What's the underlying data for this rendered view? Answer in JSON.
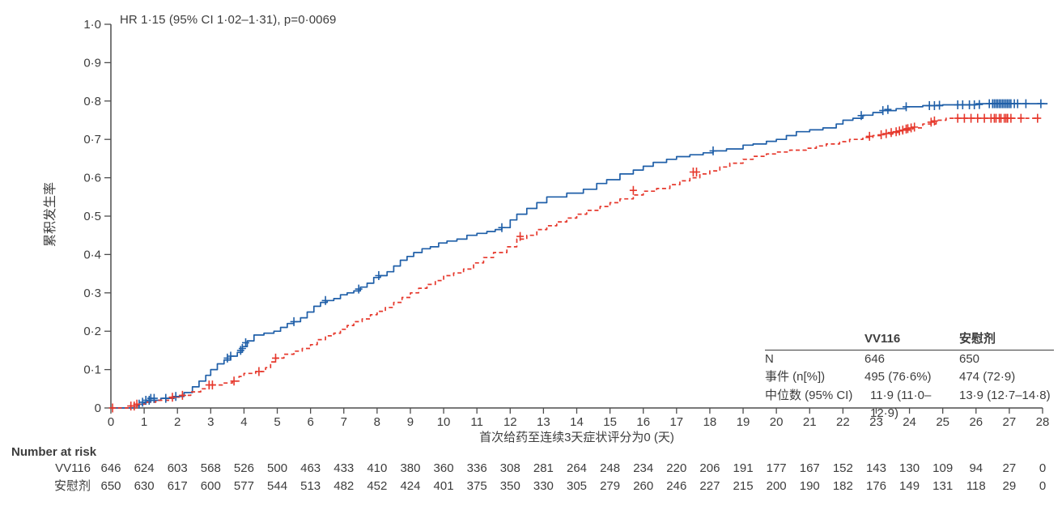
{
  "figure": {
    "annotation": "HR 1·15 (95% CI 1·02–1·31), p=0·0069"
  },
  "colors": {
    "vv116": "#1f5fa8",
    "placebo": "#e6382c",
    "axis": "#4d4d4d",
    "text": "#3d3d3d"
  },
  "axes": {
    "y": {
      "title": "累积发生率",
      "range": [
        0,
        1
      ],
      "tick_labels": [
        "0",
        "0·1",
        "0·2",
        "0·3",
        "0·4",
        "0·5",
        "0·6",
        "0·7",
        "0·8",
        "0·9",
        "1·0"
      ]
    },
    "x": {
      "title": "首次给药至连续3天症状评分为0 (天)",
      "range": [
        0,
        28
      ],
      "tick_labels": [
        "0",
        "1",
        "2",
        "3",
        "4",
        "5",
        "6",
        "7",
        "8",
        "9",
        "10",
        "11",
        "12",
        "13",
        "14",
        "15",
        "16",
        "17",
        "18",
        "19",
        "20",
        "21",
        "22",
        "23",
        "24",
        "25",
        "26",
        "27",
        "28"
      ]
    }
  },
  "stats_table": {
    "columns": [
      "VV116",
      "安慰剂"
    ],
    "rows": [
      {
        "label": "N",
        "vv116": "646",
        "placebo": "650"
      },
      {
        "label": "事件 (n[%])",
        "vv116": "495 (76·6%)",
        "placebo": "474 (72·9)"
      },
      {
        "label": "中位数 (95% CI)",
        "vv116": "11·9 (11·0–12·9)",
        "placebo": "13·9 (12·7–14·8)"
      }
    ]
  },
  "risk_table": {
    "title": "Number at risk",
    "rows": [
      {
        "label": "VV116",
        "counts": [
          646,
          624,
          603,
          568,
          526,
          500,
          463,
          433,
          410,
          380,
          360,
          336,
          308,
          281,
          264,
          248,
          234,
          220,
          206,
          191,
          177,
          167,
          152,
          143,
          130,
          109,
          94,
          27,
          0
        ]
      },
      {
        "label": "安慰剂",
        "counts": [
          650,
          630,
          617,
          600,
          577,
          544,
          513,
          482,
          452,
          424,
          401,
          375,
          350,
          330,
          305,
          279,
          260,
          246,
          227,
          215,
          200,
          190,
          182,
          176,
          149,
          131,
          118,
          29,
          0
        ]
      }
    ]
  },
  "chart_data": {
    "type": "line",
    "subtype": "kaplan-meier-step",
    "title": "",
    "xlabel": "首次给药至连续3天症状评分为0 (天)",
    "ylabel": "累积发生率",
    "xlim": [
      0,
      28
    ],
    "ylim": [
      0,
      1
    ],
    "grid": false,
    "series": [
      {
        "name": "VV116",
        "style": "solid",
        "color": "#1f5fa8",
        "points": [
          [
            0,
            0
          ],
          [
            0.7,
            0.005
          ],
          [
            0.85,
            0.01
          ],
          [
            1.0,
            0.015
          ],
          [
            1.1,
            0.02
          ],
          [
            1.5,
            0.025
          ],
          [
            1.9,
            0.03
          ],
          [
            2.2,
            0.04
          ],
          [
            2.45,
            0.055
          ],
          [
            2.65,
            0.07
          ],
          [
            2.85,
            0.085
          ],
          [
            3.0,
            0.1
          ],
          [
            3.2,
            0.115
          ],
          [
            3.4,
            0.125
          ],
          [
            3.6,
            0.135
          ],
          [
            3.8,
            0.145
          ],
          [
            3.95,
            0.16
          ],
          [
            4.1,
            0.175
          ],
          [
            4.3,
            0.19
          ],
          [
            4.6,
            0.195
          ],
          [
            4.9,
            0.2
          ],
          [
            5.1,
            0.21
          ],
          [
            5.3,
            0.22
          ],
          [
            5.5,
            0.225
          ],
          [
            5.7,
            0.235
          ],
          [
            5.9,
            0.25
          ],
          [
            6.1,
            0.265
          ],
          [
            6.3,
            0.275
          ],
          [
            6.5,
            0.28
          ],
          [
            6.7,
            0.285
          ],
          [
            6.9,
            0.295
          ],
          [
            7.1,
            0.3
          ],
          [
            7.3,
            0.305
          ],
          [
            7.5,
            0.315
          ],
          [
            7.7,
            0.325
          ],
          [
            7.9,
            0.34
          ],
          [
            8.1,
            0.345
          ],
          [
            8.3,
            0.355
          ],
          [
            8.5,
            0.37
          ],
          [
            8.7,
            0.385
          ],
          [
            8.9,
            0.395
          ],
          [
            9.1,
            0.405
          ],
          [
            9.35,
            0.415
          ],
          [
            9.6,
            0.42
          ],
          [
            9.85,
            0.43
          ],
          [
            10.1,
            0.435
          ],
          [
            10.4,
            0.44
          ],
          [
            10.7,
            0.45
          ],
          [
            11.0,
            0.455
          ],
          [
            11.3,
            0.46
          ],
          [
            11.55,
            0.465
          ],
          [
            11.75,
            0.47
          ],
          [
            12.0,
            0.49
          ],
          [
            12.2,
            0.505
          ],
          [
            12.5,
            0.52
          ],
          [
            12.8,
            0.535
          ],
          [
            13.1,
            0.55
          ],
          [
            13.7,
            0.56
          ],
          [
            14.2,
            0.57
          ],
          [
            14.6,
            0.585
          ],
          [
            14.9,
            0.595
          ],
          [
            15.3,
            0.61
          ],
          [
            15.7,
            0.62
          ],
          [
            16.0,
            0.63
          ],
          [
            16.3,
            0.64
          ],
          [
            16.7,
            0.648
          ],
          [
            17.0,
            0.655
          ],
          [
            17.4,
            0.66
          ],
          [
            17.8,
            0.665
          ],
          [
            18.1,
            0.67
          ],
          [
            18.5,
            0.675
          ],
          [
            19.0,
            0.685
          ],
          [
            19.3,
            0.688
          ],
          [
            19.7,
            0.695
          ],
          [
            20.0,
            0.7
          ],
          [
            20.3,
            0.71
          ],
          [
            20.6,
            0.72
          ],
          [
            21.0,
            0.725
          ],
          [
            21.4,
            0.73
          ],
          [
            21.8,
            0.74
          ],
          [
            22.0,
            0.75
          ],
          [
            22.3,
            0.755
          ],
          [
            22.6,
            0.763
          ],
          [
            22.9,
            0.77
          ],
          [
            23.2,
            0.775
          ],
          [
            23.6,
            0.78
          ],
          [
            23.9,
            0.785
          ],
          [
            24.4,
            0.788
          ],
          [
            25.0,
            0.79
          ],
          [
            26.0,
            0.793
          ],
          [
            28.15,
            0.793
          ]
        ],
        "censor_marks": [
          [
            0.85,
            0.01
          ],
          [
            0.95,
            0.015
          ],
          [
            1.05,
            0.02
          ],
          [
            1.15,
            0.02
          ],
          [
            1.2,
            0.025
          ],
          [
            1.3,
            0.025
          ],
          [
            1.65,
            0.025
          ],
          [
            1.95,
            0.03
          ],
          [
            3.5,
            0.13
          ],
          [
            3.6,
            0.135
          ],
          [
            3.9,
            0.15
          ],
          [
            3.95,
            0.155
          ],
          [
            4.05,
            0.17
          ],
          [
            5.5,
            0.225
          ],
          [
            6.45,
            0.28
          ],
          [
            7.45,
            0.31
          ],
          [
            8.05,
            0.345
          ],
          [
            11.75,
            0.47
          ],
          [
            18.1,
            0.67
          ],
          [
            22.55,
            0.762
          ],
          [
            23.2,
            0.775
          ],
          [
            23.35,
            0.778
          ],
          [
            23.9,
            0.785
          ],
          [
            24.6,
            0.788
          ],
          [
            24.75,
            0.788
          ],
          [
            24.9,
            0.789
          ],
          [
            25.45,
            0.79
          ],
          [
            25.6,
            0.79
          ],
          [
            25.8,
            0.79
          ],
          [
            25.95,
            0.79
          ],
          [
            26.1,
            0.791
          ],
          [
            26.4,
            0.793
          ],
          [
            26.5,
            0.793
          ],
          [
            26.55,
            0.793
          ],
          [
            26.6,
            0.793
          ],
          [
            26.65,
            0.793
          ],
          [
            26.7,
            0.793
          ],
          [
            26.75,
            0.793
          ],
          [
            26.8,
            0.793
          ],
          [
            26.85,
            0.793
          ],
          [
            26.9,
            0.793
          ],
          [
            26.95,
            0.793
          ],
          [
            27.0,
            0.793
          ],
          [
            27.05,
            0.793
          ],
          [
            27.15,
            0.793
          ],
          [
            27.25,
            0.793
          ],
          [
            27.5,
            0.793
          ],
          [
            27.95,
            0.793
          ]
        ]
      },
      {
        "name": "安慰剂",
        "style": "dashed",
        "color": "#e6382c",
        "points": [
          [
            0,
            0
          ],
          [
            0.55,
            0.005
          ],
          [
            0.8,
            0.01
          ],
          [
            1.05,
            0.015
          ],
          [
            1.35,
            0.02
          ],
          [
            1.8,
            0.028
          ],
          [
            2.1,
            0.033
          ],
          [
            2.4,
            0.042
          ],
          [
            2.7,
            0.05
          ],
          [
            2.95,
            0.06
          ],
          [
            3.35,
            0.065
          ],
          [
            3.65,
            0.07
          ],
          [
            3.85,
            0.082
          ],
          [
            4.0,
            0.09
          ],
          [
            4.35,
            0.095
          ],
          [
            4.65,
            0.105
          ],
          [
            4.8,
            0.12
          ],
          [
            4.95,
            0.13
          ],
          [
            5.2,
            0.14
          ],
          [
            5.5,
            0.148
          ],
          [
            5.75,
            0.155
          ],
          [
            6.0,
            0.165
          ],
          [
            6.2,
            0.178
          ],
          [
            6.45,
            0.188
          ],
          [
            6.7,
            0.195
          ],
          [
            6.9,
            0.205
          ],
          [
            7.1,
            0.215
          ],
          [
            7.3,
            0.225
          ],
          [
            7.55,
            0.232
          ],
          [
            7.8,
            0.243
          ],
          [
            8.0,
            0.252
          ],
          [
            8.25,
            0.262
          ],
          [
            8.5,
            0.275
          ],
          [
            8.75,
            0.288
          ],
          [
            9.0,
            0.3
          ],
          [
            9.25,
            0.312
          ],
          [
            9.5,
            0.322
          ],
          [
            9.75,
            0.332
          ],
          [
            10.0,
            0.345
          ],
          [
            10.3,
            0.352
          ],
          [
            10.6,
            0.362
          ],
          [
            10.9,
            0.378
          ],
          [
            11.2,
            0.392
          ],
          [
            11.5,
            0.405
          ],
          [
            11.9,
            0.42
          ],
          [
            12.2,
            0.44
          ],
          [
            12.5,
            0.45
          ],
          [
            12.8,
            0.465
          ],
          [
            13.1,
            0.475
          ],
          [
            13.4,
            0.485
          ],
          [
            13.7,
            0.495
          ],
          [
            14.0,
            0.505
          ],
          [
            14.3,
            0.515
          ],
          [
            14.7,
            0.525
          ],
          [
            15.0,
            0.535
          ],
          [
            15.3,
            0.545
          ],
          [
            15.7,
            0.555
          ],
          [
            16.0,
            0.565
          ],
          [
            16.4,
            0.572
          ],
          [
            16.8,
            0.582
          ],
          [
            17.1,
            0.592
          ],
          [
            17.4,
            0.6
          ],
          [
            17.7,
            0.61
          ],
          [
            18.0,
            0.618
          ],
          [
            18.3,
            0.628
          ],
          [
            18.6,
            0.638
          ],
          [
            19.0,
            0.648
          ],
          [
            19.3,
            0.656
          ],
          [
            19.7,
            0.662
          ],
          [
            20.0,
            0.667
          ],
          [
            20.4,
            0.672
          ],
          [
            20.9,
            0.677
          ],
          [
            21.2,
            0.683
          ],
          [
            21.5,
            0.688
          ],
          [
            21.9,
            0.694
          ],
          [
            22.2,
            0.7
          ],
          [
            22.6,
            0.705
          ],
          [
            22.9,
            0.71
          ],
          [
            23.2,
            0.714
          ],
          [
            23.5,
            0.718
          ],
          [
            23.8,
            0.724
          ],
          [
            24.1,
            0.73
          ],
          [
            24.4,
            0.74
          ],
          [
            24.8,
            0.75
          ],
          [
            25.1,
            0.755
          ],
          [
            27.9,
            0.755
          ]
        ],
        "censor_marks": [
          [
            0.05,
            0
          ],
          [
            0.6,
            0.005
          ],
          [
            0.7,
            0.005
          ],
          [
            0.78,
            0.01
          ],
          [
            1.85,
            0.028
          ],
          [
            2.15,
            0.033
          ],
          [
            2.95,
            0.06
          ],
          [
            3.05,
            0.06
          ],
          [
            3.7,
            0.07
          ],
          [
            4.45,
            0.095
          ],
          [
            4.95,
            0.13
          ],
          [
            12.3,
            0.447
          ],
          [
            15.7,
            0.567
          ],
          [
            17.5,
            0.615
          ],
          [
            17.6,
            0.615
          ],
          [
            22.8,
            0.708
          ],
          [
            23.15,
            0.712
          ],
          [
            23.3,
            0.715
          ],
          [
            23.45,
            0.718
          ],
          [
            23.6,
            0.72
          ],
          [
            23.7,
            0.722
          ],
          [
            23.8,
            0.724
          ],
          [
            23.9,
            0.727
          ],
          [
            23.95,
            0.728
          ],
          [
            24.05,
            0.73
          ],
          [
            24.15,
            0.732
          ],
          [
            24.65,
            0.745
          ],
          [
            24.75,
            0.748
          ],
          [
            25.45,
            0.755
          ],
          [
            25.65,
            0.755
          ],
          [
            25.85,
            0.755
          ],
          [
            26.05,
            0.755
          ],
          [
            26.25,
            0.755
          ],
          [
            26.45,
            0.755
          ],
          [
            26.55,
            0.755
          ],
          [
            26.6,
            0.755
          ],
          [
            26.7,
            0.755
          ],
          [
            26.75,
            0.755
          ],
          [
            26.85,
            0.755
          ],
          [
            26.9,
            0.755
          ],
          [
            26.95,
            0.755
          ],
          [
            27.05,
            0.755
          ],
          [
            27.35,
            0.755
          ],
          [
            27.85,
            0.755
          ]
        ]
      }
    ]
  }
}
